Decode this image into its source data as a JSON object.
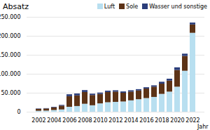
{
  "chart_data": {
    "type": "bar",
    "stacked": true,
    "title": "Absatz",
    "xlabel": "Jahr",
    "categories": [
      "2002",
      null,
      "2004",
      null,
      "2006",
      null,
      "2008",
      null,
      "2010",
      null,
      "2012",
      null,
      "2014",
      null,
      "2016",
      null,
      "2018",
      null,
      "2020",
      null,
      "2022"
    ],
    "series": [
      {
        "name": "Luft",
        "color": "#b8dff0",
        "values": [
          2500,
          3000,
          4500,
          6000,
          13000,
          15000,
          21000,
          17000,
          22000,
          25000,
          26000,
          27000,
          30000,
          33000,
          36000,
          39000,
          47000,
          53000,
          66000,
          108000,
          208000
        ]
      },
      {
        "name": "Sole",
        "color": "#5c3317",
        "values": [
          5000,
          5500,
          7000,
          10000,
          28000,
          28000,
          31000,
          27000,
          25000,
          27000,
          27000,
          23000,
          23000,
          23000,
          25000,
          27000,
          27000,
          29000,
          44000,
          39000,
          22000
        ]
      },
      {
        "name": "Wasser und sonstige",
        "color": "#2b3d7a",
        "values": [
          1000,
          1000,
          1500,
          2000,
          5000,
          5000,
          5000,
          3500,
          3500,
          3500,
          3500,
          3500,
          3500,
          3500,
          3500,
          3500,
          5000,
          5000,
          7000,
          6000,
          5000
        ]
      }
    ],
    "ylim": [
      0,
      250000
    ],
    "yticks": [
      0,
      {
        "value": 50000,
        "label": "50.000"
      },
      {
        "value": 100000,
        "label": "100.000"
      },
      {
        "value": 150000,
        "label": "150.000"
      },
      {
        "value": 200000,
        "label": "200.000"
      },
      {
        "value": 250000,
        "label": "250.000"
      }
    ],
    "grid": true,
    "legend": "top-right"
  }
}
